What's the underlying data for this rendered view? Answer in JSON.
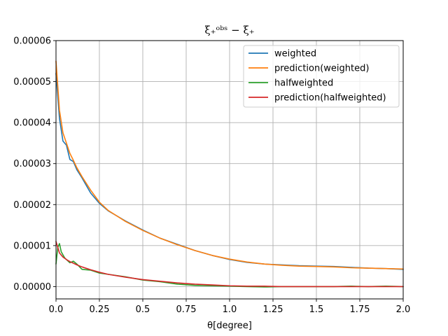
{
  "chart_data": {
    "type": "line",
    "title": "ξ₊ᵒᵇˢ − ξ₊",
    "xlabel": "θ[degree]",
    "ylabel": "",
    "xlim": [
      0.0,
      2.0
    ],
    "ylim": [
      -3e-06,
      6e-05
    ],
    "grid": true,
    "legend_position": "top-right",
    "x_ticks": [
      "0.0",
      "0.25",
      "0.5",
      "0.75",
      "1.0",
      "1.25",
      "1.5",
      "1.75",
      "2.0"
    ],
    "x_tick_values": [
      0.0,
      0.25,
      0.5,
      0.75,
      1.0,
      1.25,
      1.5,
      1.75,
      2.0
    ],
    "y_ticks": [
      "0.00000",
      "0.00001",
      "0.00002",
      "0.00003",
      "0.00004",
      "0.00005",
      "0.00006"
    ],
    "y_tick_values": [
      0.0,
      1e-05,
      2e-05,
      3e-05,
      4e-05,
      5e-05,
      6e-05
    ],
    "series": [
      {
        "name": "weighted",
        "color": "#1f77b4",
        "x": [
          0.0,
          0.02,
          0.04,
          0.06,
          0.08,
          0.1,
          0.12,
          0.15,
          0.2,
          0.25,
          0.3,
          0.4,
          0.5,
          0.6,
          0.7,
          0.8,
          0.9,
          1.0,
          1.1,
          1.2,
          1.3,
          1.4,
          1.5,
          1.6,
          1.7,
          1.8,
          1.9,
          2.0
        ],
        "y": [
          5.2e-05,
          4.1e-05,
          3.55e-05,
          3.45e-05,
          3.1e-05,
          3.05e-05,
          2.85e-05,
          2.65e-05,
          2.28e-05,
          2.03e-05,
          1.85e-05,
          1.6e-05,
          1.38e-05,
          1.18e-05,
          1.03e-05,
          8.8e-06,
          7.6e-06,
          6.6e-06,
          5.9e-06,
          5.5e-06,
          5.3e-06,
          5.1e-06,
          5e-06,
          4.9e-06,
          4.7e-06,
          4.5e-06,
          4.4e-06,
          4.2e-06
        ]
      },
      {
        "name": "prediction(weighted)",
        "color": "#ff7f0e",
        "x": [
          0.0,
          0.02,
          0.04,
          0.06,
          0.08,
          0.1,
          0.12,
          0.15,
          0.2,
          0.25,
          0.3,
          0.4,
          0.5,
          0.6,
          0.7,
          0.8,
          0.9,
          1.0,
          1.1,
          1.2,
          1.3,
          1.4,
          1.5,
          1.6,
          1.7,
          1.8,
          1.9,
          2.0
        ],
        "y": [
          5.5e-05,
          4.3e-05,
          3.75e-05,
          3.5e-05,
          3.25e-05,
          3.08e-05,
          2.9e-05,
          2.68e-05,
          2.35e-05,
          2.06e-05,
          1.86e-05,
          1.59e-05,
          1.37e-05,
          1.18e-05,
          1.02e-05,
          8.8e-06,
          7.6e-06,
          6.7e-06,
          6e-06,
          5.5e-06,
          5.2e-06,
          5e-06,
          4.9e-06,
          4.8e-06,
          4.6e-06,
          4.5e-06,
          4.4e-06,
          4.3e-06
        ]
      },
      {
        "name": "halfweighted",
        "color": "#2ca02c",
        "x": [
          0.0,
          0.01,
          0.02,
          0.03,
          0.05,
          0.08,
          0.1,
          0.12,
          0.15,
          0.2,
          0.25,
          0.3,
          0.4,
          0.5,
          0.6,
          0.7,
          0.8,
          0.9,
          1.0,
          1.1,
          1.2,
          1.3,
          1.4,
          1.5,
          1.6,
          1.7,
          1.8,
          1.9,
          2.0
        ],
        "y": [
          5.5e-06,
          9.5e-06,
          1.05e-05,
          8.5e-06,
          7e-06,
          5.8e-06,
          6.2e-06,
          5.5e-06,
          4.2e-06,
          4e-06,
          3.3e-06,
          3e-06,
          2.4e-06,
          1.6e-06,
          1.2e-06,
          6e-07,
          3e-07,
          2e-07,
          1e-07,
          0.0,
          -1e-07,
          0.0,
          0.0,
          0.0,
          0.0,
          1e-07,
          0.0,
          1e-07,
          0.0
        ]
      },
      {
        "name": "prediction(halfweighted)",
        "color": "#d62728",
        "x": [
          0.0,
          0.02,
          0.04,
          0.06,
          0.08,
          0.1,
          0.12,
          0.15,
          0.2,
          0.25,
          0.3,
          0.4,
          0.5,
          0.6,
          0.7,
          0.8,
          0.9,
          1.0,
          1.1,
          1.2,
          1.3,
          1.4,
          1.5,
          1.6,
          1.7,
          1.8,
          1.9,
          2.0
        ],
        "y": [
          1.1e-05,
          8.2e-06,
          7.2e-06,
          6.6e-06,
          6.1e-06,
          5.7e-06,
          5.3e-06,
          4.8e-06,
          4.1e-06,
          3.5e-06,
          3e-06,
          2.3e-06,
          1.7e-06,
          1.3e-06,
          9e-07,
          6e-07,
          4e-07,
          2e-07,
          1e-07,
          1e-07,
          0.0,
          0.0,
          0.0,
          0.0,
          0.0,
          0.0,
          0.0,
          0.0
        ]
      }
    ]
  }
}
